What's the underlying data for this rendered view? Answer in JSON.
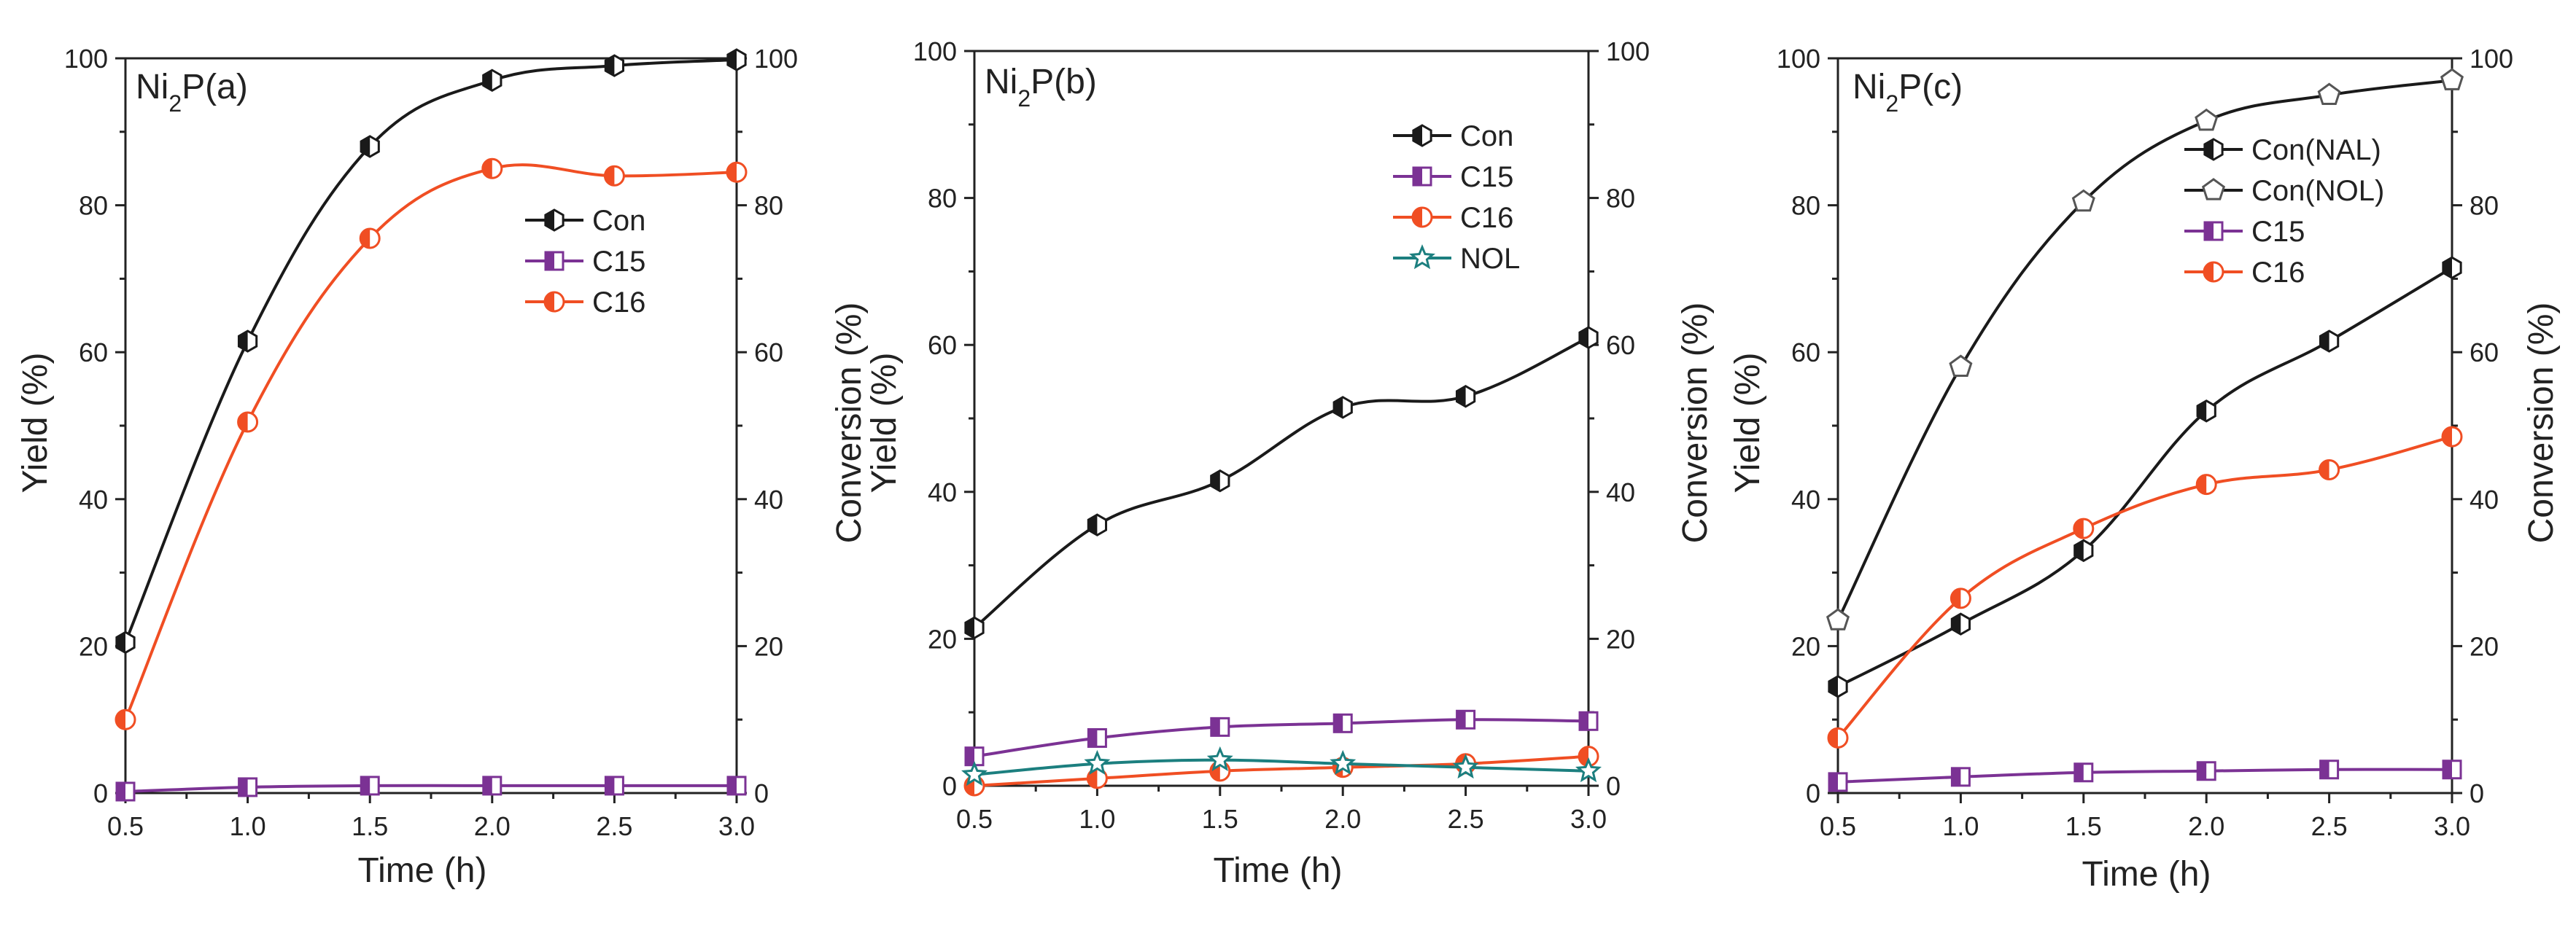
{
  "figure": {
    "panels": [
      "Ni2P(a)",
      "Ni2P(b)",
      "Ni2P(c)"
    ]
  },
  "chart_data": [
    {
      "type": "line",
      "panel_label": {
        "base": "Ni",
        "sub": "2",
        "rest": "P(a)"
      },
      "xlabel": "Time (h)",
      "ylabel": "Yield (%)",
      "y2label": "Conversion (%)",
      "xlim": [
        0.5,
        3.0
      ],
      "ylim": [
        0,
        100
      ],
      "x_ticks": [
        "0.5",
        "1.0",
        "1.5",
        "2.0",
        "2.5",
        "3.0"
      ],
      "y_ticks": [
        "0",
        "20",
        "40",
        "60",
        "80",
        "100"
      ],
      "y2_ticks": [
        "0",
        "20",
        "40",
        "60",
        "80",
        "100"
      ],
      "legend_position": "right-middle",
      "x": [
        0.5,
        1.0,
        1.5,
        2.0,
        2.5,
        3.0
      ],
      "series": [
        {
          "name": "Con",
          "color": "#1a1a1a",
          "marker": "half-hexagon",
          "values": [
            20.5,
            61.5,
            88,
            97,
            99,
            99.8
          ]
        },
        {
          "name": "C15",
          "color": "#7b3294",
          "marker": "half-square",
          "values": [
            0.2,
            0.8,
            1.0,
            1.0,
            1.0,
            1.0
          ]
        },
        {
          "name": "C16",
          "color": "#f04e23",
          "marker": "half-circle",
          "values": [
            10,
            50.5,
            75.5,
            85,
            84,
            84.5
          ]
        }
      ]
    },
    {
      "type": "line",
      "panel_label": {
        "base": "Ni",
        "sub": "2",
        "rest": "P(b)"
      },
      "xlabel": "Time (h)",
      "ylabel": "Yield (%)",
      "y2label": "Conversion (%)",
      "xlim": [
        0.5,
        3.0
      ],
      "ylim": [
        0,
        100
      ],
      "x_ticks": [
        "0.5",
        "1.0",
        "1.5",
        "2.0",
        "2.5",
        "3.0"
      ],
      "y_ticks": [
        "0",
        "20",
        "40",
        "60",
        "80",
        "100"
      ],
      "y2_ticks": [
        "0",
        "20",
        "40",
        "60",
        "80",
        "100"
      ],
      "legend_position": "top-right",
      "x": [
        0.5,
        1.0,
        1.5,
        2.0,
        2.5,
        3.0
      ],
      "series": [
        {
          "name": "Con",
          "color": "#1a1a1a",
          "marker": "half-hexagon",
          "values": [
            21.5,
            35.5,
            41.5,
            51.5,
            53,
            61
          ]
        },
        {
          "name": "C15",
          "color": "#7b3294",
          "marker": "half-square",
          "values": [
            4,
            6.5,
            8,
            8.5,
            9,
            8.8
          ]
        },
        {
          "name": "C16",
          "color": "#f04e23",
          "marker": "half-circle",
          "values": [
            0,
            1,
            2,
            2.5,
            3,
            4
          ]
        },
        {
          "name": "NOL",
          "color": "#1c7f7f",
          "marker": "star",
          "values": [
            1.5,
            3,
            3.5,
            3,
            2.5,
            2
          ]
        }
      ]
    },
    {
      "type": "line",
      "panel_label": {
        "base": "Ni",
        "sub": "2",
        "rest": "P(c)"
      },
      "xlabel": "Time (h)",
      "ylabel": "Yield (%)",
      "y2label": "Conversion (%)",
      "xlim": [
        0.5,
        3.0
      ],
      "ylim": [
        0,
        100
      ],
      "x_ticks": [
        "0.5",
        "1.0",
        "1.5",
        "2.0",
        "2.5",
        "3.0"
      ],
      "y_ticks": [
        "0",
        "20",
        "40",
        "60",
        "80",
        "100"
      ],
      "y2_ticks": [
        "0",
        "20",
        "40",
        "60",
        "80",
        "100"
      ],
      "legend_position": "top-right",
      "x": [
        0.5,
        1.0,
        1.5,
        2.0,
        2.5,
        3.0
      ],
      "series": [
        {
          "name": "Con(NAL)",
          "color": "#1a1a1a",
          "marker": "half-hexagon",
          "values": [
            14.5,
            23,
            33,
            52,
            61.5,
            71.5
          ]
        },
        {
          "name": "Con(NOL)",
          "color": "#1a1a1a",
          "marker": "pentagon-open",
          "values": [
            23.5,
            58,
            80.5,
            91.5,
            95,
            97
          ]
        },
        {
          "name": "C15",
          "color": "#7b3294",
          "marker": "half-square",
          "values": [
            1.5,
            2.2,
            2.8,
            3.0,
            3.2,
            3.2
          ]
        },
        {
          "name": "C16",
          "color": "#f04e23",
          "marker": "half-circle",
          "values": [
            7.5,
            26.5,
            36,
            42,
            44,
            48.5
          ]
        }
      ]
    }
  ]
}
